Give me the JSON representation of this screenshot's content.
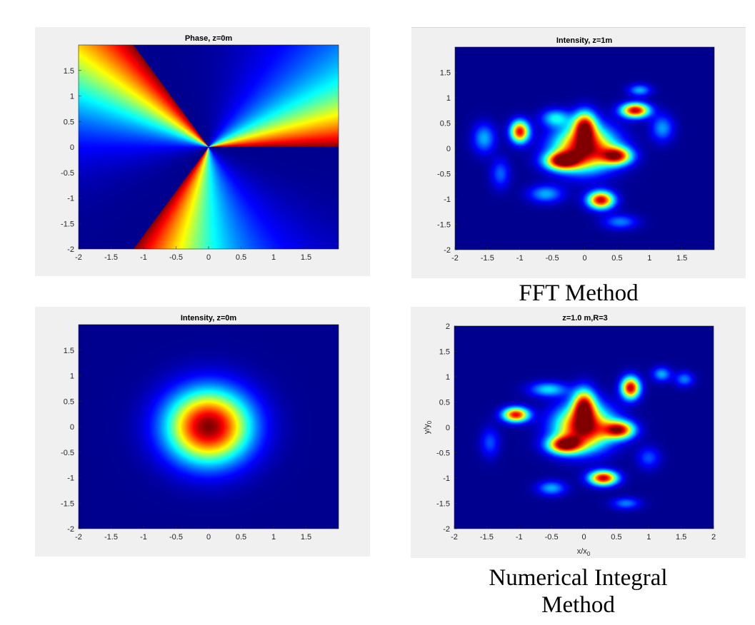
{
  "captions": {
    "fft": "FFT Method",
    "integral_line1": "Numerical Integral",
    "integral_line2": "Method"
  },
  "colormap": [
    "#00008f",
    "#0000ff",
    "#00ffff",
    "#ffff00",
    "#ff0000",
    "#800000"
  ],
  "chart_data": [
    {
      "type": "heatmap",
      "title": "Phase, z=0m",
      "field": "phase",
      "xlim": [
        -2,
        2
      ],
      "ylim": [
        -2,
        2
      ],
      "xticks": [
        -2,
        -1.5,
        -1,
        -0.5,
        0,
        0.5,
        1,
        1.5
      ],
      "yticks": [
        -2,
        -1.5,
        -1,
        -0.5,
        0,
        0.5,
        1,
        1.5
      ],
      "xtick_labels": [
        "-2",
        "-1.5",
        "-1",
        "-0.5",
        "0",
        "0.5",
        "1",
        "1.5"
      ],
      "ytick_labels": [
        "-2",
        "-1.5",
        "-1",
        "-0.5",
        "0",
        "0.5",
        "1",
        "1.5"
      ],
      "xlabel": "",
      "ylabel": "",
      "phase_jumps_deg": [
        0,
        120,
        240
      ],
      "topological_charge": 3
    },
    {
      "type": "heatmap",
      "title": "Intensity, z=1m",
      "field": "intensity",
      "xlim": [
        -2,
        2
      ],
      "ylim": [
        -2,
        2
      ],
      "xticks": [
        -2,
        -1.5,
        -1,
        -0.5,
        0,
        0.5,
        1,
        1.5
      ],
      "yticks": [
        -2,
        -1.5,
        -1,
        -0.5,
        0,
        0.5,
        1,
        1.5
      ],
      "xtick_labels": [
        "-2",
        "-1.5",
        "-1",
        "-0.5",
        "0",
        "0.5",
        "1",
        "1.5"
      ],
      "ytick_labels": [
        "-2",
        "-1.5",
        "-1",
        "-0.5",
        "0",
        "0.5",
        "1",
        "1.5"
      ],
      "xlabel": "",
      "ylabel": "",
      "blobs": [
        {
          "x": 0.0,
          "y": 0.0,
          "amp": 1.0,
          "sx": 0.32,
          "sy": 0.3
        },
        {
          "x": -0.35,
          "y": -0.25,
          "amp": 0.85,
          "sx": 0.18,
          "sy": 0.12
        },
        {
          "x": 0.5,
          "y": -0.15,
          "amp": 0.8,
          "sx": 0.16,
          "sy": 0.12
        },
        {
          "x": 0.0,
          "y": 0.45,
          "amp": 0.75,
          "sx": 0.12,
          "sy": 0.2
        },
        {
          "x": -1.0,
          "y": 0.33,
          "amp": 0.9,
          "sx": 0.1,
          "sy": 0.15
        },
        {
          "x": 0.78,
          "y": 0.75,
          "amp": 0.95,
          "sx": 0.15,
          "sy": 0.1
        },
        {
          "x": 0.25,
          "y": -1.02,
          "amp": 0.95,
          "sx": 0.14,
          "sy": 0.12
        },
        {
          "x": -1.55,
          "y": 0.2,
          "amp": 0.3,
          "sx": 0.12,
          "sy": 0.2
        },
        {
          "x": -0.45,
          "y": 0.6,
          "amp": 0.35,
          "sx": 0.15,
          "sy": 0.12
        },
        {
          "x": 0.85,
          "y": 1.15,
          "amp": 0.3,
          "sx": 0.12,
          "sy": 0.08
        },
        {
          "x": 1.2,
          "y": 0.4,
          "amp": 0.28,
          "sx": 0.12,
          "sy": 0.18
        },
        {
          "x": -0.6,
          "y": -0.9,
          "amp": 0.3,
          "sx": 0.18,
          "sy": 0.12
        },
        {
          "x": 0.55,
          "y": -1.45,
          "amp": 0.25,
          "sx": 0.18,
          "sy": 0.1
        },
        {
          "x": -1.3,
          "y": -0.5,
          "amp": 0.22,
          "sx": 0.1,
          "sy": 0.2
        }
      ]
    },
    {
      "type": "heatmap",
      "title": "Intensity, z=0m",
      "field": "intensity",
      "xlim": [
        -2,
        2
      ],
      "ylim": [
        -2,
        2
      ],
      "xticks": [
        -2,
        -1.5,
        -1,
        -0.5,
        0,
        0.5,
        1,
        1.5
      ],
      "yticks": [
        -2,
        -1.5,
        -1,
        -0.5,
        0,
        0.5,
        1,
        1.5
      ],
      "xtick_labels": [
        "-2",
        "-1.5",
        "-1",
        "-0.5",
        "0",
        "0.5",
        "1",
        "1.5"
      ],
      "ytick_labels": [
        "-2",
        "-1.5",
        "-1",
        "-0.5",
        "0",
        "0.5",
        "1",
        "1.5"
      ],
      "xlabel": "",
      "ylabel": "",
      "blobs": [
        {
          "x": 0.0,
          "y": 0.0,
          "amp": 1.0,
          "sx": 0.45,
          "sy": 0.5
        }
      ]
    },
    {
      "type": "heatmap",
      "title": "z=1.0 m,R=3",
      "field": "intensity",
      "xlim": [
        -2,
        2
      ],
      "ylim": [
        -2,
        2
      ],
      "xticks": [
        -2,
        -1.5,
        -1,
        -0.5,
        0,
        0.5,
        1,
        1.5,
        2
      ],
      "yticks": [
        -2,
        -1.5,
        -1,
        -0.5,
        0,
        0.5,
        1,
        1.5,
        2
      ],
      "xtick_labels": [
        "-2",
        "-1.5",
        "-1",
        "-0.5",
        "0",
        "0.5",
        "1",
        "1.5",
        "2"
      ],
      "ytick_labels": [
        "-2",
        "-1.5",
        "-1",
        "-0.5",
        "0",
        "0.5",
        "1",
        "1.5",
        "2"
      ],
      "xlabel": "x/x",
      "xlabel_sub": "0",
      "ylabel": "y/y",
      "ylabel_sub": "0",
      "blobs": [
        {
          "x": 0.0,
          "y": 0.0,
          "amp": 1.0,
          "sx": 0.3,
          "sy": 0.3
        },
        {
          "x": -0.3,
          "y": -0.35,
          "amp": 0.85,
          "sx": 0.18,
          "sy": 0.12
        },
        {
          "x": 0.55,
          "y": -0.05,
          "amp": 0.85,
          "sx": 0.16,
          "sy": 0.12
        },
        {
          "x": 0.0,
          "y": 0.45,
          "amp": 0.75,
          "sx": 0.12,
          "sy": 0.22
        },
        {
          "x": -1.05,
          "y": 0.25,
          "amp": 0.9,
          "sx": 0.14,
          "sy": 0.1
        },
        {
          "x": 0.72,
          "y": 0.78,
          "amp": 0.95,
          "sx": 0.1,
          "sy": 0.15
        },
        {
          "x": 0.3,
          "y": -1.0,
          "amp": 0.95,
          "sx": 0.15,
          "sy": 0.1
        },
        {
          "x": -0.55,
          "y": 0.75,
          "amp": 0.35,
          "sx": 0.2,
          "sy": 0.1
        },
        {
          "x": 1.2,
          "y": 1.05,
          "amp": 0.3,
          "sx": 0.1,
          "sy": 0.1
        },
        {
          "x": 1.55,
          "y": 0.95,
          "amp": 0.25,
          "sx": 0.1,
          "sy": 0.1
        },
        {
          "x": -0.5,
          "y": -1.2,
          "amp": 0.3,
          "sx": 0.15,
          "sy": 0.1
        },
        {
          "x": 0.65,
          "y": -1.5,
          "amp": 0.25,
          "sx": 0.15,
          "sy": 0.08
        },
        {
          "x": -1.45,
          "y": -0.3,
          "amp": 0.2,
          "sx": 0.1,
          "sy": 0.2
        },
        {
          "x": 1.0,
          "y": -0.6,
          "amp": 0.2,
          "sx": 0.12,
          "sy": 0.15
        }
      ]
    }
  ]
}
